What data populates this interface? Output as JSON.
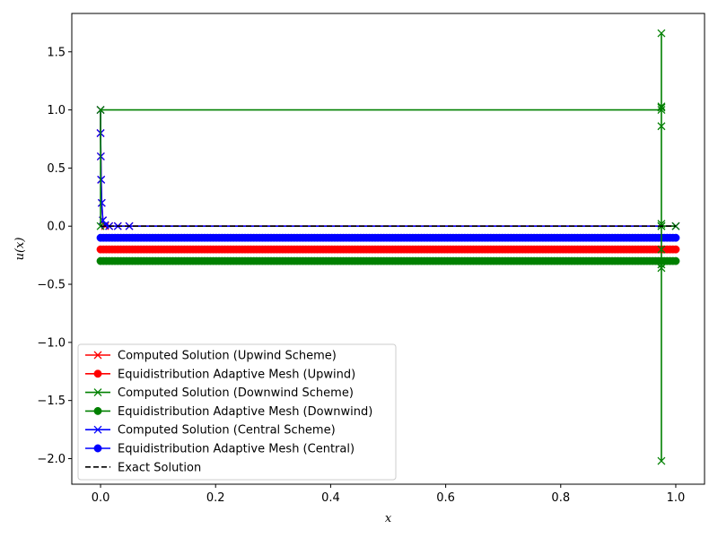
{
  "chart_data": {
    "type": "line",
    "xlabel": "x",
    "ylabel": "u(x)",
    "xlim": [
      -0.05,
      1.05
    ],
    "ylim": [
      -2.22,
      1.83
    ],
    "xticks": [
      0.0,
      0.2,
      0.4,
      0.6,
      0.8,
      1.0
    ],
    "xtick_labels": [
      "0.0",
      "0.2",
      "0.4",
      "0.6",
      "0.8",
      "1.0"
    ],
    "yticks": [
      -2.0,
      -1.5,
      -1.0,
      -0.5,
      0.0,
      0.5,
      1.0,
      1.5
    ],
    "ytick_labels": [
      "−2.0",
      "−1.5",
      "−1.0",
      "−0.5",
      "0.0",
      "0.5",
      "1.0",
      "1.5"
    ],
    "grid": false,
    "legend_position": "lower-left",
    "series": [
      {
        "name": "Computed Solution (Upwind Scheme)",
        "color": "#ff0000",
        "marker": "x",
        "line_style": "solid",
        "x": [
          0.0,
          0.0,
          0.0005,
          0.001,
          0.002,
          0.004,
          0.008,
          0.015,
          0.03,
          0.05,
          1.0
        ],
        "y": [
          1.0,
          0.8,
          0.6,
          0.4,
          0.2,
          0.05,
          0.0,
          0.0,
          0.0,
          0.0,
          0.0
        ]
      },
      {
        "name": "Equidistribution Adaptive Mesh (Upwind)",
        "color": "#ff0000",
        "marker": "circle",
        "line_style": "solid",
        "x_range": [
          0.0,
          1.0
        ],
        "point_count": 200,
        "y_constant": -0.2
      },
      {
        "name": "Computed Solution (Downwind Scheme)",
        "color": "#008000",
        "marker": "x",
        "line_style": "solid",
        "x": [
          0.0,
          0.0,
          0.975,
          0.975,
          0.975,
          0.975,
          0.975,
          0.975,
          0.975,
          0.975,
          0.975,
          0.975,
          0.975,
          0.975,
          1.0
        ],
        "y": [
          0.0,
          1.0,
          1.0,
          1.03,
          0.86,
          1.66,
          -0.33,
          -2.02,
          0.0,
          -0.36,
          0.02,
          -0.2,
          1.02,
          0.0,
          0.0
        ]
      },
      {
        "name": "Equidistribution Adaptive Mesh (Downwind)",
        "color": "#008000",
        "marker": "circle",
        "line_style": "solid",
        "x_range": [
          0.0,
          1.0
        ],
        "point_count": 200,
        "y_constant": -0.3
      },
      {
        "name": "Computed Solution (Central Scheme)",
        "color": "#0000ff",
        "marker": "x",
        "line_style": "solid",
        "x": [
          0.0,
          0.0,
          0.0005,
          0.001,
          0.002,
          0.004,
          0.008,
          0.015,
          0.03,
          0.05,
          1.0
        ],
        "y": [
          1.0,
          0.8,
          0.6,
          0.4,
          0.2,
          0.05,
          0.01,
          0.0,
          0.0,
          0.0,
          0.0
        ]
      },
      {
        "name": "Equidistribution Adaptive Mesh (Central)",
        "color": "#0000ff",
        "marker": "circle",
        "line_style": "solid",
        "x_range": [
          0.0,
          1.0
        ],
        "point_count": 200,
        "y_constant": -0.1
      },
      {
        "name": "Exact Solution",
        "color": "#000000",
        "marker": "none",
        "line_style": "dashed",
        "x": [
          0.0,
          1.0
        ],
        "y": [
          0.0,
          0.0
        ]
      }
    ]
  }
}
